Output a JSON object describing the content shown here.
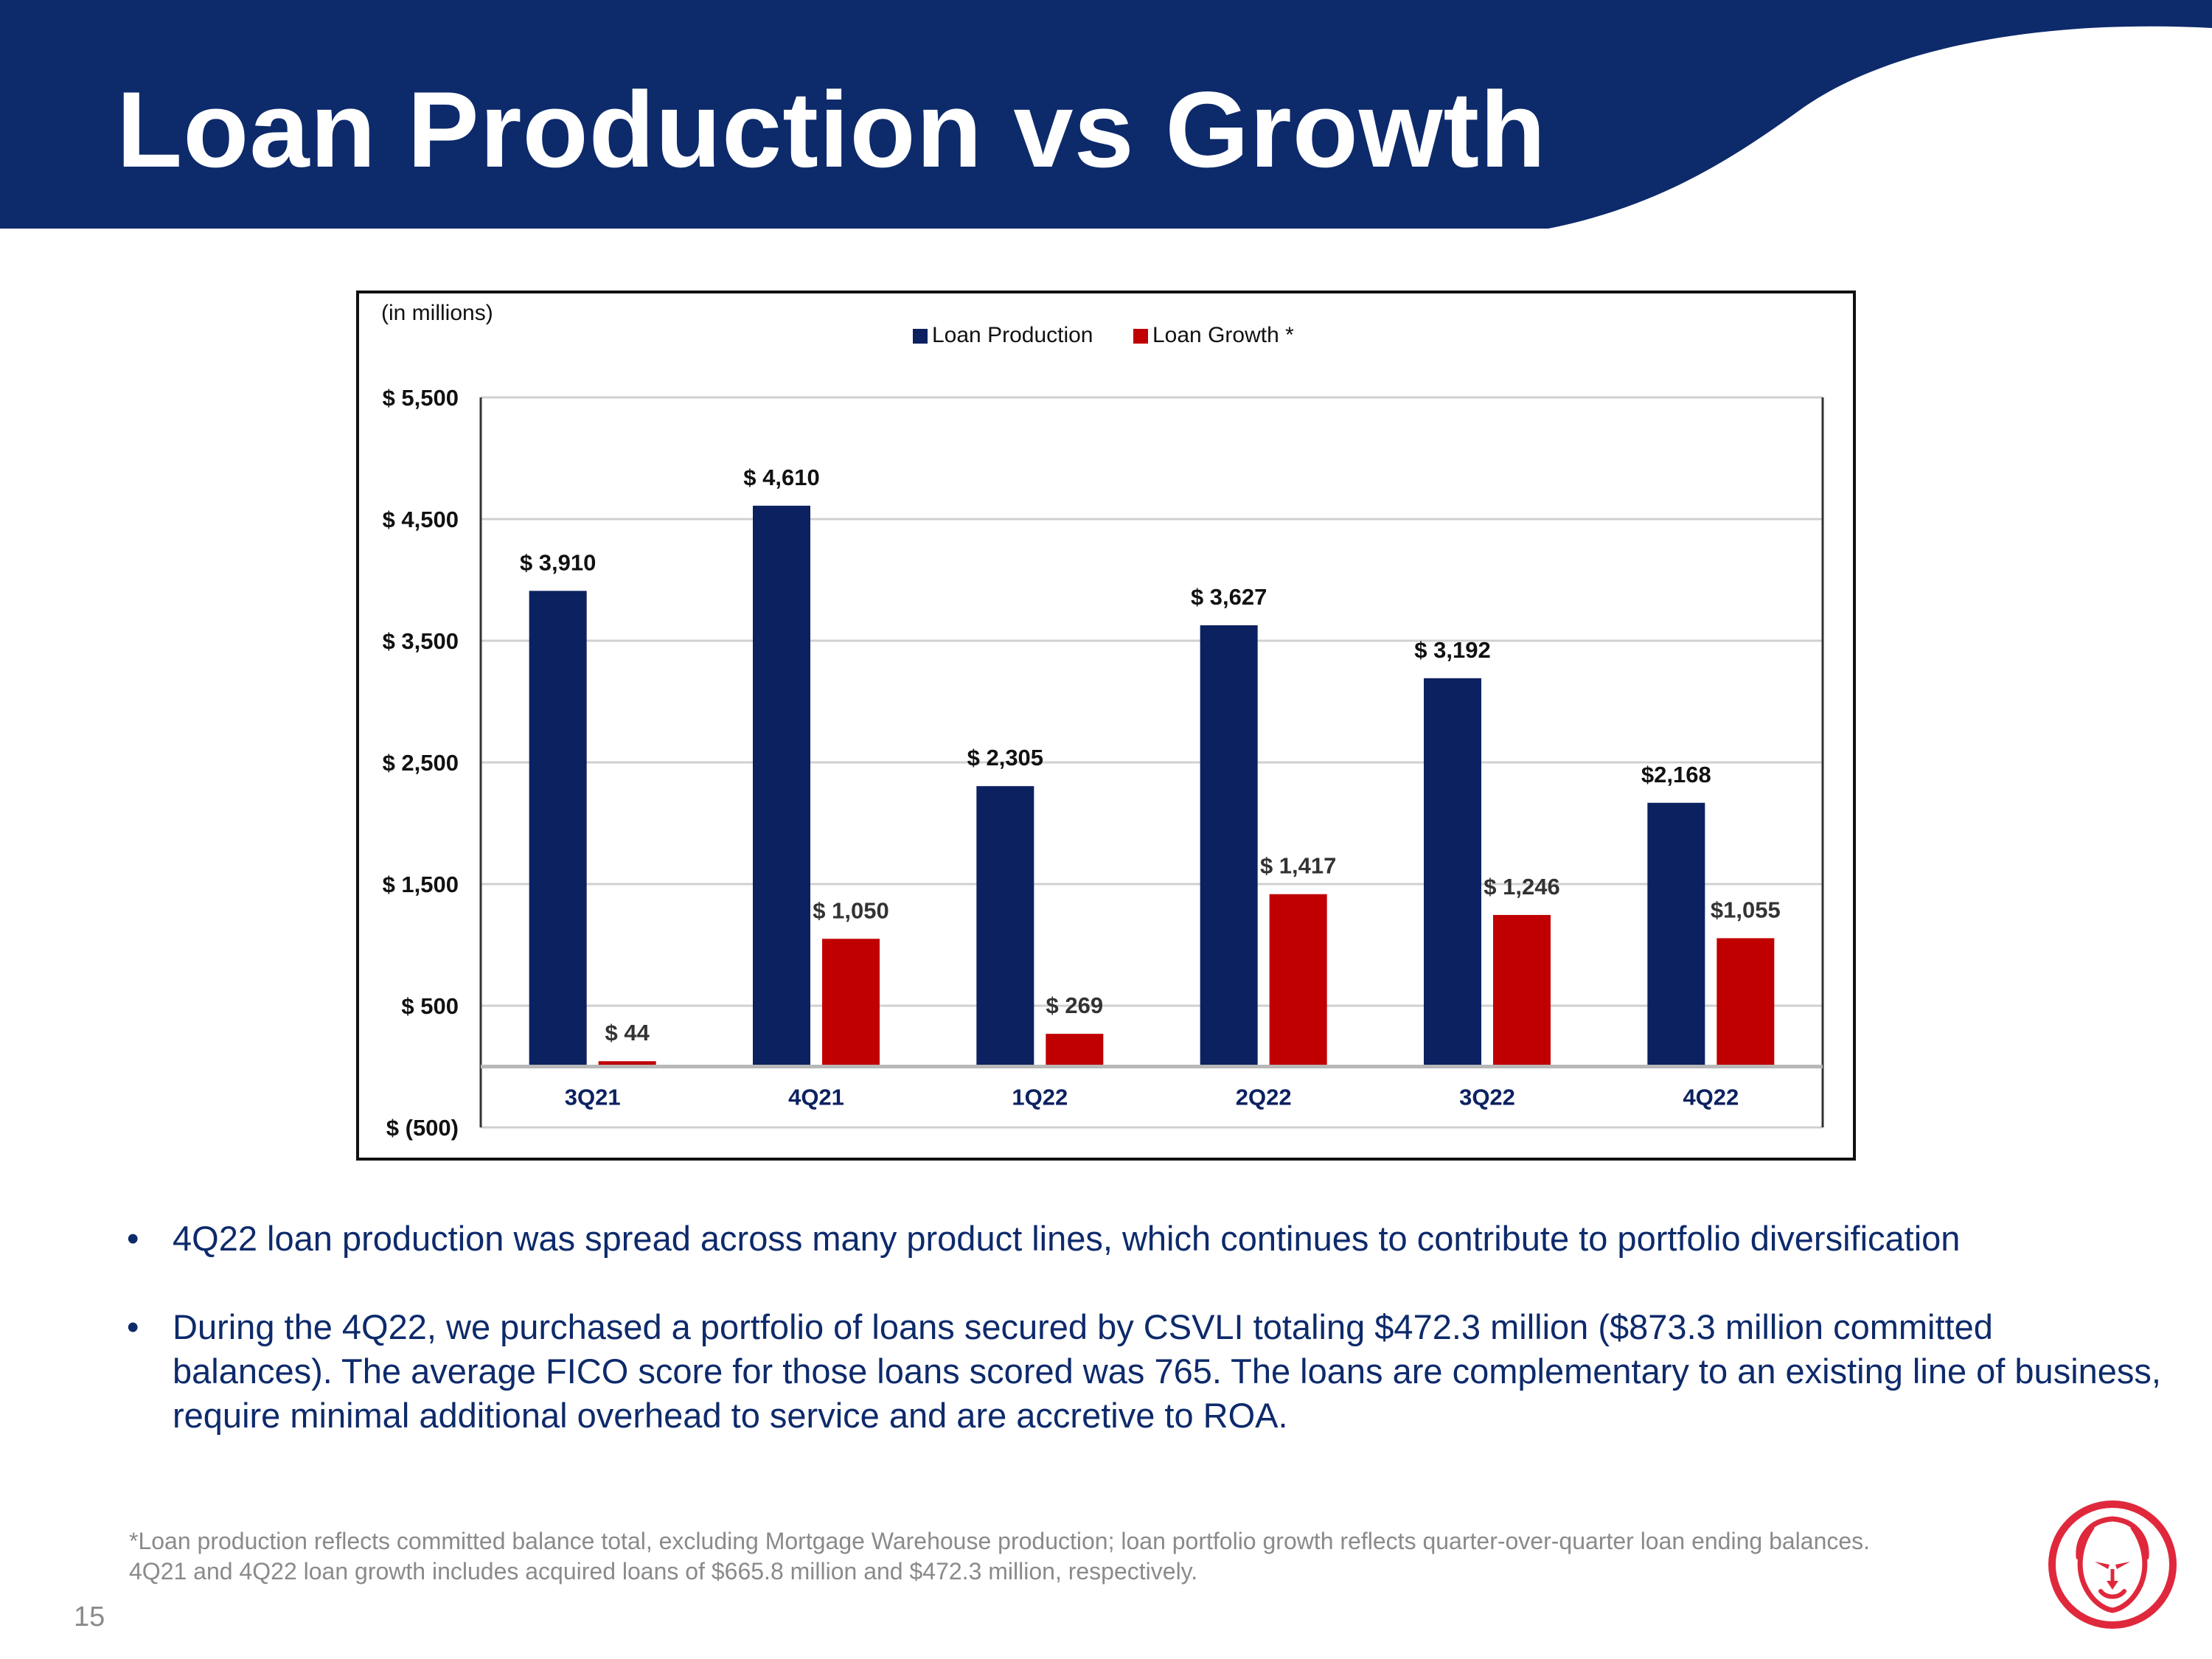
{
  "slide": {
    "title": "Loan Production vs Growth",
    "page_number": "15"
  },
  "colors": {
    "header": "#0d2a6b",
    "production": "#0c2160",
    "growth": "#c00000",
    "accent_logo": "#e0283c"
  },
  "chart_data": {
    "type": "bar",
    "units_note": "(in millions)",
    "categories": [
      "3Q21",
      "4Q21",
      "1Q22",
      "2Q22",
      "3Q22",
      "4Q22"
    ],
    "series": [
      {
        "name": "Loan Production",
        "values": [
          3910,
          4610,
          2305,
          3627,
          3192,
          2168
        ],
        "labels": [
          "$ 3,910",
          "$ 4,610",
          "$ 2,305",
          "$ 3,627",
          "$ 3,192",
          "$2,168"
        ]
      },
      {
        "name": "Loan Growth *",
        "values": [
          44,
          1050,
          269,
          1417,
          1246,
          1055
        ],
        "labels": [
          "$ 44",
          "$ 1,050",
          "$ 269",
          "$ 1,417",
          "$ 1,246",
          "$1,055"
        ]
      }
    ],
    "y_ticks": [
      -500,
      500,
      1500,
      2500,
      3500,
      4500,
      5500
    ],
    "y_tick_labels": [
      "$ (500)",
      "$ 500",
      "$ 1,500",
      "$ 2,500",
      "$ 3,500",
      "$ 4,500",
      "$ 5,500"
    ],
    "ylim": [
      -500,
      5500
    ],
    "legend_position": "top-center",
    "grid": true
  },
  "bullets": [
    "4Q22 loan production was spread across many product lines, which continues to contribute to portfolio diversification",
    "During the 4Q22, we purchased a portfolio of loans secured by CSVLI totaling $472.3 million ($873.3 million committed balances).  The average FICO score for those loans scored was 765. The loans are complementary to an existing line of business, require minimal additional overhead to service and are accretive to ROA."
  ],
  "bullet_glyph": "•",
  "footnote": [
    "*Loan production reflects committed balance total, excluding Mortgage Warehouse production; loan portfolio growth reflects quarter-over-quarter loan ending balances.",
    "4Q21 and 4Q22 loan growth includes acquired loans of $665.8 million and $472.3 million, respectively."
  ]
}
